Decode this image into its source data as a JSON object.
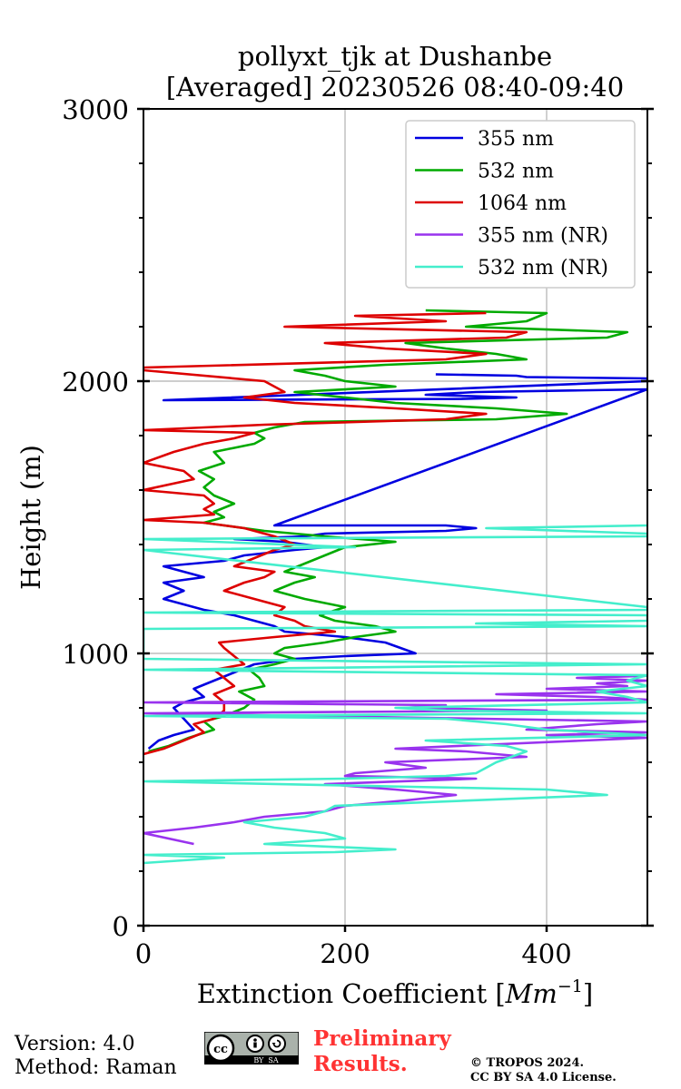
{
  "chart_data": {
    "type": "line",
    "title_line1": "pollyxt_tjk at Dushanbe",
    "title_line2": "[Averaged] 20230526 08:40-09:40",
    "xlabel": "Extinction Coefficient [",
    "xlabel_unit": "Mm",
    "xlabel_exp": "−1",
    "xlabel_close": "]",
    "ylabel": "Height (m)",
    "xlim": [
      0,
      500
    ],
    "ylim": [
      0,
      3000
    ],
    "x_ticks": [
      0,
      200,
      400
    ],
    "x_tick_labels": [
      "0",
      "200",
      "400"
    ],
    "y_ticks": [
      0,
      1000,
      2000,
      3000
    ],
    "y_tick_labels": [
      "0",
      "1000",
      "2000",
      "3000"
    ],
    "grid": true,
    "legend_position": "top-right",
    "series": [
      {
        "name": "355 nm",
        "color": "#0000e0",
        "points": [
          [
            5,
            650
          ],
          [
            15,
            680
          ],
          [
            30,
            700
          ],
          [
            50,
            720
          ],
          [
            40,
            760
          ],
          [
            30,
            800
          ],
          [
            40,
            820
          ],
          [
            60,
            840
          ],
          [
            50,
            870
          ],
          [
            70,
            900
          ],
          [
            90,
            930
          ],
          [
            110,
            960
          ],
          [
            150,
            980
          ],
          [
            200,
            990
          ],
          [
            270,
            1000
          ],
          [
            255,
            1020
          ],
          [
            240,
            1040
          ],
          [
            200,
            1060
          ],
          [
            140,
            1080
          ],
          [
            130,
            1100
          ],
          [
            110,
            1120
          ],
          [
            90,
            1140
          ],
          [
            60,
            1160
          ],
          [
            40,
            1180
          ],
          [
            20,
            1200
          ],
          [
            40,
            1230
          ],
          [
            20,
            1260
          ],
          [
            60,
            1280
          ],
          [
            40,
            1300
          ],
          [
            20,
            1320
          ],
          [
            80,
            1340
          ],
          [
            100,
            1360
          ],
          [
            150,
            1380
          ],
          [
            180,
            1390
          ],
          [
            140,
            1410
          ],
          [
            90,
            1420
          ],
          [
            160,
            1430
          ],
          [
            180,
            1440
          ],
          [
            300,
            1450
          ],
          [
            330,
            1460
          ],
          [
            300,
            1470
          ],
          [
            130,
            1470
          ],
          [
            500,
            1970
          ],
          [
            330,
            1960
          ],
          [
            280,
            1950
          ],
          [
            370,
            1940
          ],
          [
            320,
            1935
          ],
          [
            20,
            1930
          ],
          [
            500,
            2000
          ],
          [
            500,
            2010
          ],
          [
            380,
            2015
          ],
          [
            370,
            2020
          ],
          [
            290,
            2025
          ]
        ]
      },
      {
        "name": "532 nm",
        "color": "#00aa00",
        "points": [
          [
            5,
            640
          ],
          [
            25,
            660
          ],
          [
            45,
            690
          ],
          [
            70,
            720
          ],
          [
            60,
            750
          ],
          [
            80,
            770
          ],
          [
            100,
            800
          ],
          [
            110,
            830
          ],
          [
            95,
            860
          ],
          [
            120,
            880
          ],
          [
            115,
            910
          ],
          [
            105,
            940
          ],
          [
            130,
            960
          ],
          [
            150,
            980
          ],
          [
            130,
            1000
          ],
          [
            140,
            1020
          ],
          [
            180,
            1040
          ],
          [
            210,
            1060
          ],
          [
            250,
            1080
          ],
          [
            230,
            1100
          ],
          [
            190,
            1120
          ],
          [
            175,
            1140
          ],
          [
            200,
            1170
          ],
          [
            160,
            1200
          ],
          [
            130,
            1230
          ],
          [
            150,
            1260
          ],
          [
            170,
            1280
          ],
          [
            140,
            1300
          ],
          [
            160,
            1330
          ],
          [
            180,
            1360
          ],
          [
            200,
            1390
          ],
          [
            250,
            1410
          ],
          [
            180,
            1430
          ],
          [
            120,
            1450
          ],
          [
            60,
            1480
          ],
          [
            80,
            1500
          ],
          [
            70,
            1520
          ],
          [
            90,
            1550
          ],
          [
            70,
            1580
          ],
          [
            60,
            1610
          ],
          [
            70,
            1640
          ],
          [
            55,
            1670
          ],
          [
            80,
            1700
          ],
          [
            70,
            1740
          ],
          [
            110,
            1770
          ],
          [
            120,
            1790
          ],
          [
            110,
            1810
          ],
          [
            130,
            1830
          ],
          [
            160,
            1850
          ],
          [
            350,
            1860
          ],
          [
            420,
            1880
          ],
          [
            350,
            1900
          ],
          [
            250,
            1920
          ],
          [
            200,
            1940
          ],
          [
            150,
            1960
          ],
          [
            250,
            1980
          ],
          [
            200,
            2000
          ],
          [
            180,
            2020
          ],
          [
            150,
            2040
          ],
          [
            240,
            2060
          ],
          [
            380,
            2080
          ],
          [
            350,
            2100
          ],
          [
            300,
            2120
          ],
          [
            260,
            2140
          ],
          [
            460,
            2160
          ],
          [
            480,
            2180
          ],
          [
            320,
            2200
          ],
          [
            380,
            2220
          ],
          [
            400,
            2250
          ],
          [
            280,
            2260
          ]
        ]
      },
      {
        "name": "1064 nm",
        "color": "#dd0000",
        "points": [
          [
            0,
            630
          ],
          [
            20,
            650
          ],
          [
            40,
            680
          ],
          [
            60,
            710
          ],
          [
            50,
            740
          ],
          [
            70,
            760
          ],
          [
            80,
            790
          ],
          [
            80,
            820
          ],
          [
            70,
            850
          ],
          [
            90,
            880
          ],
          [
            80,
            910
          ],
          [
            70,
            940
          ],
          [
            100,
            960
          ],
          [
            90,
            990
          ],
          [
            80,
            1020
          ],
          [
            75,
            1040
          ],
          [
            130,
            1060
          ],
          [
            190,
            1080
          ],
          [
            160,
            1100
          ],
          [
            150,
            1120
          ],
          [
            130,
            1140
          ],
          [
            140,
            1170
          ],
          [
            110,
            1200
          ],
          [
            80,
            1230
          ],
          [
            100,
            1260
          ],
          [
            120,
            1280
          ],
          [
            130,
            1300
          ],
          [
            90,
            1320
          ],
          [
            110,
            1350
          ],
          [
            130,
            1380
          ],
          [
            150,
            1400
          ],
          [
            130,
            1430
          ],
          [
            100,
            1460
          ],
          [
            60,
            1480
          ],
          [
            0,
            1490
          ],
          [
            70,
            1510
          ],
          [
            60,
            1530
          ],
          [
            70,
            1550
          ],
          [
            60,
            1580
          ],
          [
            0,
            1600
          ],
          [
            50,
            1640
          ],
          [
            40,
            1670
          ],
          [
            0,
            1700
          ],
          [
            30,
            1740
          ],
          [
            60,
            1770
          ],
          [
            90,
            1790
          ],
          [
            110,
            1810
          ],
          [
            0,
            1820
          ],
          [
            120,
            1840
          ],
          [
            300,
            1860
          ],
          [
            340,
            1880
          ],
          [
            250,
            1900
          ],
          [
            150,
            1920
          ],
          [
            100,
            1940
          ],
          [
            140,
            1960
          ],
          [
            130,
            1980
          ],
          [
            120,
            2000
          ],
          [
            0,
            2040
          ],
          [
            0,
            2050
          ],
          [
            300,
            2080
          ],
          [
            340,
            2100
          ],
          [
            240,
            2120
          ],
          [
            180,
            2140
          ],
          [
            360,
            2160
          ],
          [
            380,
            2180
          ],
          [
            140,
            2200
          ],
          [
            300,
            2220
          ],
          [
            210,
            2240
          ],
          [
            340,
            2250
          ]
        ]
      },
      {
        "name": "355 nm (NR)",
        "color": "#9933ee",
        "points": [
          [
            50,
            300
          ],
          [
            0,
            340
          ],
          [
            50,
            360
          ],
          [
            90,
            380
          ],
          [
            120,
            400
          ],
          [
            180,
            420
          ],
          [
            200,
            440
          ],
          [
            260,
            460
          ],
          [
            310,
            480
          ],
          [
            250,
            500
          ],
          [
            180,
            520
          ],
          [
            330,
            540
          ],
          [
            200,
            550
          ],
          [
            210,
            560
          ],
          [
            280,
            580
          ],
          [
            240,
            600
          ],
          [
            380,
            620
          ],
          [
            320,
            640
          ],
          [
            250,
            650
          ],
          [
            500,
            690
          ],
          [
            400,
            700
          ],
          [
            500,
            710
          ],
          [
            380,
            720
          ],
          [
            450,
            740
          ],
          [
            500,
            750
          ],
          [
            0,
            780
          ],
          [
            400,
            790
          ],
          [
            260,
            800
          ],
          [
            300,
            810
          ],
          [
            0,
            820
          ],
          [
            500,
            830
          ],
          [
            450,
            840
          ],
          [
            350,
            850
          ],
          [
            500,
            860
          ],
          [
            400,
            870
          ],
          [
            480,
            880
          ],
          [
            450,
            890
          ],
          [
            500,
            900
          ],
          [
            430,
            910
          ],
          [
            520,
            920
          ],
          [
            500,
            940
          ],
          [
            500,
            960
          ],
          [
            500,
            980
          ],
          [
            500,
            990
          ]
        ]
      },
      {
        "name": "532 nm (NR)",
        "color": "#44eecc",
        "points": [
          [
            0,
            230
          ],
          [
            80,
            250
          ],
          [
            0,
            260
          ],
          [
            190,
            270
          ],
          [
            250,
            280
          ],
          [
            120,
            300
          ],
          [
            200,
            320
          ],
          [
            180,
            340
          ],
          [
            130,
            360
          ],
          [
            100,
            380
          ],
          [
            160,
            400
          ],
          [
            180,
            420
          ],
          [
            190,
            440
          ],
          [
            460,
            480
          ],
          [
            400,
            500
          ],
          [
            0,
            530
          ],
          [
            200,
            540
          ],
          [
            300,
            550
          ],
          [
            330,
            560
          ],
          [
            350,
            600
          ],
          [
            380,
            640
          ],
          [
            360,
            660
          ],
          [
            280,
            680
          ],
          [
            500,
            700
          ],
          [
            400,
            720
          ],
          [
            360,
            740
          ],
          [
            300,
            760
          ],
          [
            0,
            770
          ],
          [
            500,
            780
          ],
          [
            300,
            790
          ],
          [
            250,
            800
          ],
          [
            500,
            820
          ],
          [
            480,
            840
          ],
          [
            450,
            860
          ],
          [
            500,
            880
          ],
          [
            480,
            900
          ],
          [
            500,
            920
          ],
          [
            0,
            940
          ],
          [
            500,
            960
          ],
          [
            0,
            980
          ],
          [
            0,
            1090
          ],
          [
            500,
            1100
          ],
          [
            330,
            1110
          ],
          [
            500,
            1120
          ],
          [
            500,
            1140
          ],
          [
            0,
            1150
          ],
          [
            500,
            1160
          ],
          [
            500,
            1170
          ],
          [
            0,
            1380
          ],
          [
            210,
            1390
          ],
          [
            0,
            1420
          ],
          [
            500,
            1430
          ],
          [
            500,
            1440
          ],
          [
            340,
            1460
          ],
          [
            500,
            1470
          ]
        ]
      }
    ]
  },
  "footer": {
    "version": "Version: 4.0",
    "method": "Method: Raman",
    "preliminary_line1": "Preliminary",
    "preliminary_line2": "Results.",
    "preliminary_color": "#ff3333",
    "copyright_line1": "© TROPOS 2024.",
    "copyright_line2": "CC BY SA 4.0 License.",
    "cc_badge_icons": [
      "cc-icon",
      "by-icon",
      "sa-icon"
    ],
    "cc_badge_text": "BY  SA"
  }
}
